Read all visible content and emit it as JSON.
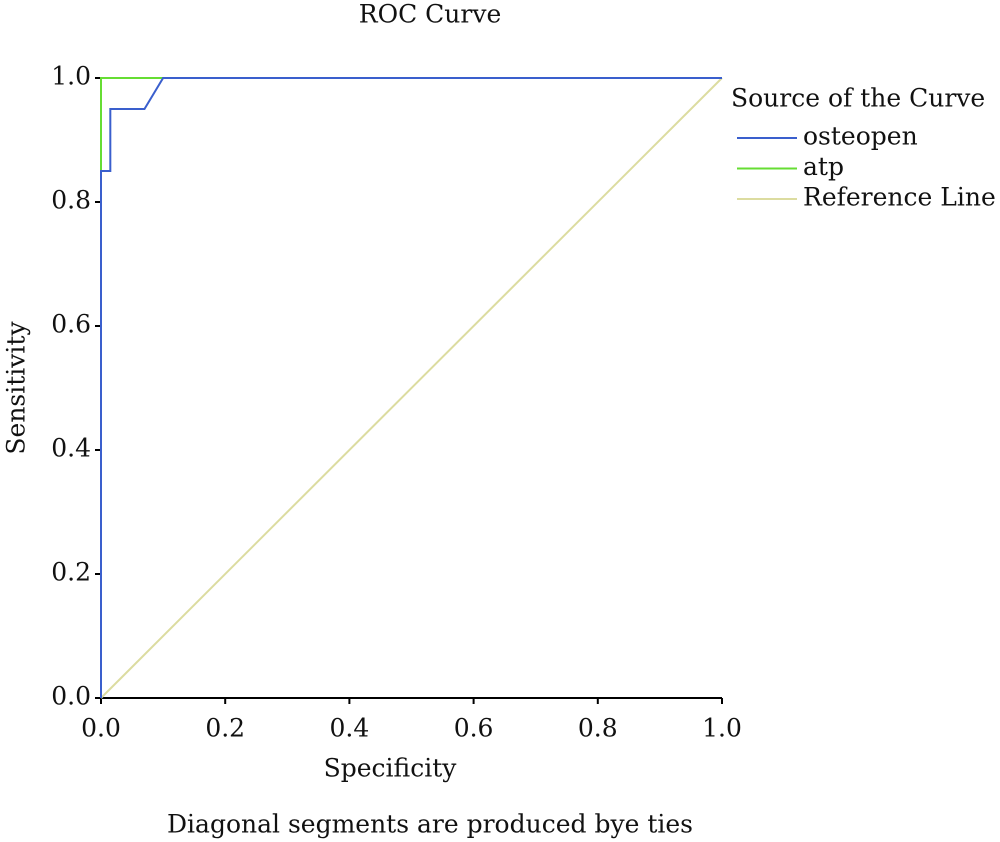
{
  "chart_data": {
    "type": "line",
    "title": "ROC Curve",
    "x_label": "Specificity",
    "y_label": "Sensitivity",
    "note": "Diagonal segments are produced bye ties",
    "legend_title": "Source of the Curve",
    "legend_position": "right",
    "series": [
      {
        "name": "osteopen",
        "color": "#3a5fcd",
        "x": [
          0,
          0,
          0.015,
          0.015,
          0.07,
          0.1,
          1
        ],
        "values": [
          0,
          0.85,
          0.85,
          0.95,
          0.95,
          1,
          1
        ]
      },
      {
        "name": "atp",
        "color": "#66dd33",
        "x": [
          0,
          0,
          1
        ],
        "values": [
          0,
          1,
          1
        ]
      },
      {
        "name": "Reference Line",
        "color": "#dcdca0",
        "x": [
          0,
          1
        ],
        "values": [
          0,
          1
        ]
      }
    ],
    "xlim": [
      0,
      1
    ],
    "ylim": [
      0,
      1
    ],
    "xticks": [
      {
        "value": 0,
        "label": "0.0"
      },
      0.2,
      0.4,
      0.6,
      0.8,
      {
        "value": 1,
        "label": "1.0"
      }
    ],
    "yticks": [
      {
        "value": 0,
        "label": "0.0"
      },
      0.2,
      0.4,
      0.6,
      0.8,
      {
        "value": 1,
        "label": "1.0"
      }
    ],
    "grid": false
  }
}
